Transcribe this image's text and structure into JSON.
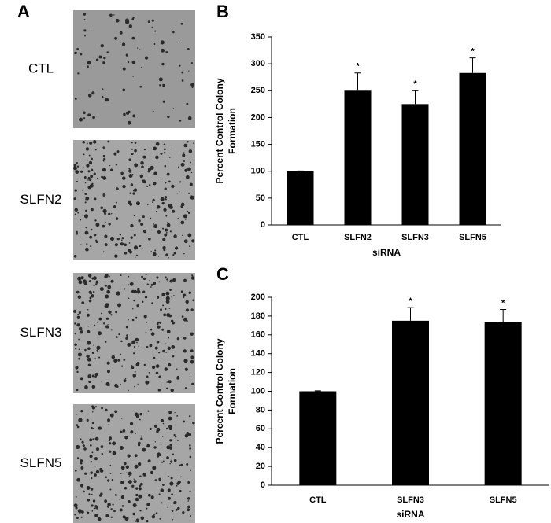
{
  "panel_labels": [
    "A",
    "B",
    "C"
  ],
  "images": {
    "labels": [
      "CTL",
      "SLFN2",
      "SLFN3",
      "SLFN5"
    ]
  },
  "chart_data": [
    {
      "type": "bar",
      "categories": [
        "CTL",
        "SLFN2",
        "SLFN3",
        "SLFN5"
      ],
      "values": [
        100,
        250,
        225,
        283
      ],
      "errors": [
        0.5,
        33,
        25,
        28
      ],
      "significance": [
        null,
        "*",
        "*",
        "*"
      ],
      "color": "#000000",
      "xlabel": "siRNA",
      "ylabel": [
        "Percent Control Colony",
        "Formation"
      ],
      "ylim": [
        0,
        350
      ],
      "yticks": [
        0,
        50,
        100,
        150,
        200,
        250,
        300,
        350
      ]
    },
    {
      "type": "bar",
      "categories": [
        "CTL",
        "SLFN3",
        "SLFN5"
      ],
      "values": [
        100,
        175,
        174
      ],
      "errors": [
        0.5,
        14,
        13
      ],
      "significance": [
        null,
        "*",
        "*"
      ],
      "color": "#000000",
      "xlabel": "siRNA",
      "ylabel": [
        "Percent Control Colony",
        "Formation"
      ],
      "ylim": [
        0,
        200
      ],
      "yticks": [
        0,
        20,
        40,
        60,
        80,
        100,
        120,
        140,
        160,
        180,
        200
      ]
    }
  ]
}
